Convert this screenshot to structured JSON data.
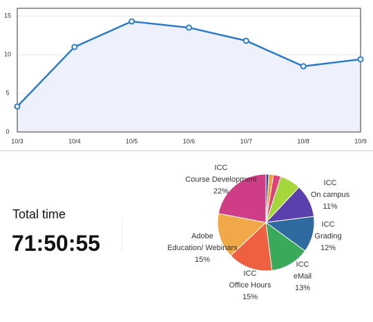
{
  "summary": {
    "label": "Total time",
    "value": "71:50:55"
  },
  "chart_data": [
    {
      "type": "line",
      "categories": [
        "10/3",
        "10/4",
        "10/5",
        "10/6",
        "10/7",
        "10/8",
        "10/9"
      ],
      "values": [
        3.3,
        11,
        14.3,
        13.5,
        11.8,
        8.5,
        9.4
      ],
      "color": "#2a7bc8",
      "area_color": "#eef0fb",
      "ylim": [
        0,
        16
      ],
      "yticks": [
        0,
        5,
        10,
        15
      ],
      "grid": true
    },
    {
      "type": "pie",
      "categories": [
        null,
        null,
        null,
        null,
        "ICC\nOn campus",
        "ICC\nGrading",
        "ICC\neMail",
        "ICC\nOffice Hours",
        "Adobe\nEducation/ Webinars",
        "ICC\nCourse Development"
      ],
      "values": [
        1,
        1.5,
        2.5,
        7,
        11,
        12,
        13,
        15,
        15,
        22
      ],
      "value_labels": [
        null,
        null,
        null,
        null,
        "11%",
        "12%",
        "13%",
        "15%",
        "15%",
        "22%"
      ],
      "colors": [
        "#2f4f9f",
        "#f0a030",
        "#e0407a",
        "#a5d63b",
        "#5b3fae",
        "#2e6aa0",
        "#3aaa5a",
        "#ee6040",
        "#f0a848",
        "#cf3d86"
      ]
    }
  ]
}
